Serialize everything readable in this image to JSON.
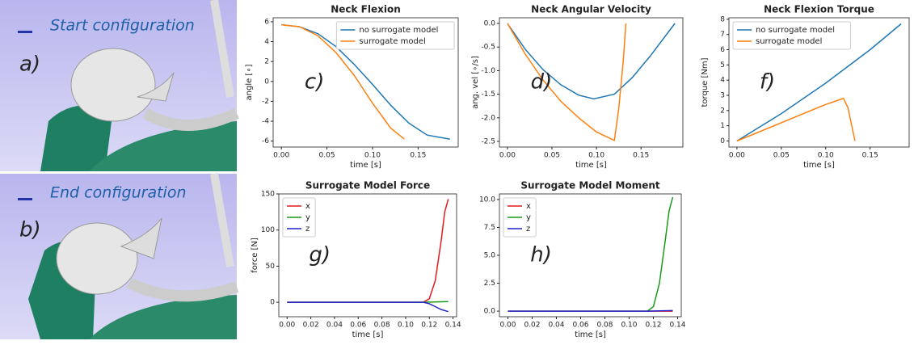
{
  "images": [
    {
      "caption": "Start configuration",
      "label": "a)"
    },
    {
      "caption": "End configuration",
      "label": "b)"
    }
  ],
  "chart_data": [
    {
      "type": "line",
      "title": "Neck Flexion",
      "annotation": "c)",
      "xlabel": "time [s]",
      "ylabel": "angle [∘]",
      "xlim": [
        -0.009,
        0.194
      ],
      "ylim": [
        -6.6,
        6.4
      ],
      "xticks": [
        {
          "value": 0,
          "label": "0.00"
        },
        0.05,
        {
          "value": 0.1,
          "label": "0.10"
        },
        0.15
      ],
      "yticks": [
        -6,
        -4,
        -2,
        0,
        2,
        4,
        6
      ],
      "legend": "upper right",
      "series": [
        {
          "name": "no surrogate model",
          "color": "#1f77b4",
          "x": [
            0,
            0.02,
            0.04,
            0.06,
            0.08,
            0.1,
            0.12,
            0.14,
            0.16,
            0.185
          ],
          "values": [
            5.7,
            5.5,
            4.8,
            3.5,
            1.7,
            -0.3,
            -2.4,
            -4.2,
            -5.4,
            -5.8
          ]
        },
        {
          "name": "surrogate model",
          "color": "#ff7f0e",
          "x": [
            0,
            0.02,
            0.04,
            0.06,
            0.08,
            0.1,
            0.12,
            0.135
          ],
          "values": [
            5.7,
            5.5,
            4.6,
            2.9,
            0.6,
            -2.2,
            -4.7,
            -5.8
          ]
        }
      ]
    },
    {
      "type": "line",
      "title": "Neck Angular Velocity",
      "annotation": "d)",
      "xlabel": "time [s]",
      "ylabel": "ang. vel [∘/s]",
      "xlim": [
        -0.009,
        0.197
      ],
      "ylim": [
        -2.62,
        0.12
      ],
      "xticks": [
        {
          "value": 0,
          "label": "0.00"
        },
        0.05,
        {
          "value": 0.1,
          "label": "0.10"
        },
        0.15
      ],
      "yticks": [
        -2.5,
        {
          "value": -2,
          "label": "-2.0"
        },
        -1.5,
        {
          "value": -1,
          "label": "-1.0"
        },
        -0.5,
        {
          "value": 0,
          "label": "0.0"
        }
      ],
      "series": [
        {
          "name": "no surrogate model",
          "color": "#1f77b4",
          "x": [
            0,
            0.02,
            0.04,
            0.06,
            0.08,
            0.097,
            0.12,
            0.14,
            0.16,
            0.188
          ],
          "values": [
            0,
            -0.55,
            -0.98,
            -1.3,
            -1.52,
            -1.6,
            -1.5,
            -1.15,
            -0.7,
            0
          ]
        },
        {
          "name": "surrogate model",
          "color": "#ff7f0e",
          "x": [
            0,
            0.02,
            0.04,
            0.06,
            0.08,
            0.1,
            0.12,
            0.125,
            0.13,
            0.133
          ],
          "values": [
            0,
            -0.65,
            -1.2,
            -1.65,
            -2.0,
            -2.3,
            -2.48,
            -1.8,
            -0.8,
            0
          ]
        }
      ]
    },
    {
      "type": "line",
      "title": "Neck Flexion Torque",
      "annotation": "f)",
      "xlabel": "time [s]",
      "ylabel": "torque [Nm]",
      "xlim": [
        -0.009,
        0.194
      ],
      "ylim": [
        -0.4,
        8.1
      ],
      "xticks": [
        {
          "value": 0,
          "label": "0.00"
        },
        0.05,
        {
          "value": 0.1,
          "label": "0.10"
        },
        0.15
      ],
      "yticks": [
        0,
        1,
        2,
        3,
        4,
        5,
        6,
        7,
        8
      ],
      "legend": "upper left",
      "series": [
        {
          "name": "no surrogate model",
          "color": "#1f77b4",
          "x": [
            0,
            0.05,
            0.1,
            0.15,
            0.185
          ],
          "values": [
            0,
            1.8,
            3.8,
            6.0,
            7.7
          ]
        },
        {
          "name": "surrogate model",
          "color": "#ff7f0e",
          "x": [
            0,
            0.05,
            0.1,
            0.12,
            0.125,
            0.133
          ],
          "values": [
            0,
            1.2,
            2.4,
            2.8,
            2.2,
            0
          ]
        }
      ]
    },
    {
      "type": "line",
      "title": "Surrogate Model Force",
      "annotation": "g)",
      "xlabel": "time [s]",
      "ylabel": "force [N]",
      "xlim": [
        -0.007,
        0.143
      ],
      "ylim": [
        -20,
        150
      ],
      "xticks": [
        {
          "value": 0,
          "label": "0.00"
        },
        0.02,
        0.04,
        0.06,
        0.08,
        {
          "value": 0.1,
          "label": "0.10"
        },
        0.12,
        0.14
      ],
      "yticks": [
        0,
        50,
        100,
        150
      ],
      "legend": "upper left",
      "series": [
        {
          "name": "x",
          "color": "#e41a1c",
          "x": [
            0,
            0.115,
            0.12,
            0.125,
            0.13,
            0.133,
            0.136
          ],
          "values": [
            0,
            0,
            5,
            30,
            85,
            125,
            143
          ]
        },
        {
          "name": "y",
          "color": "#1a9a1a",
          "x": [
            0,
            0.115,
            0.136
          ],
          "values": [
            0,
            0,
            1
          ]
        },
        {
          "name": "z",
          "color": "#2222cc",
          "x": [
            0,
            0.115,
            0.12,
            0.125,
            0.13,
            0.136
          ],
          "values": [
            0,
            0,
            -2,
            -6,
            -10,
            -13
          ]
        }
      ]
    },
    {
      "type": "line",
      "title": "Surrogate Model Moment",
      "annotation": "h)",
      "xlabel": "time [s]",
      "xlim": [
        -0.007,
        0.143
      ],
      "ylim": [
        -0.5,
        10.5
      ],
      "xticks": [
        {
          "value": 0,
          "label": "0.00"
        },
        0.02,
        0.04,
        0.06,
        0.08,
        {
          "value": 0.1,
          "label": "0.10"
        },
        0.12,
        0.14
      ],
      "yticks": [
        {
          "value": 0,
          "label": "0.0"
        },
        2.5,
        {
          "value": 5,
          "label": "5.0"
        },
        7.5,
        {
          "value": 10,
          "label": "10.0"
        }
      ],
      "legend": "upper left",
      "series": [
        {
          "name": "x",
          "color": "#e41a1c",
          "x": [
            0,
            0.136
          ],
          "values": [
            0,
            0
          ]
        },
        {
          "name": "y",
          "color": "#1a9a1a",
          "x": [
            0,
            0.115,
            0.12,
            0.125,
            0.13,
            0.133,
            0.136
          ],
          "values": [
            0,
            0,
            0.4,
            2.5,
            6.5,
            9.0,
            10.2
          ]
        },
        {
          "name": "z",
          "color": "#2222cc",
          "x": [
            0,
            0.115,
            0.136
          ],
          "values": [
            0,
            0,
            0.05
          ]
        }
      ]
    }
  ]
}
